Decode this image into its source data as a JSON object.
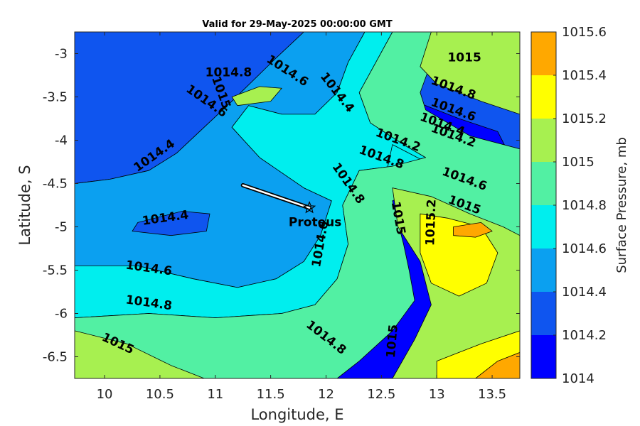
{
  "chart_data": {
    "type": "heatmap",
    "title": "Valid for 29-May-2025 00:00:00 GMT",
    "xlabel": "Longitude, E",
    "ylabel": "Latitude, S",
    "xlim": [
      9.73,
      13.75
    ],
    "ylim": [
      -6.75,
      -2.75
    ],
    "x_ticks": [
      10,
      10.5,
      11,
      11.5,
      12,
      12.5,
      13,
      13.5
    ],
    "x_tick_labels": [
      "10",
      "10.5",
      "11",
      "11.5",
      "12",
      "12.5",
      "13",
      "13.5"
    ],
    "y_ticks": [
      -3,
      -3.5,
      -4,
      -4.5,
      -5,
      -5.5,
      -6,
      -6.5
    ],
    "y_tick_labels": [
      "-3",
      "-3.5",
      "-4",
      "-4.5",
      "-5",
      "-5.5",
      "-6",
      "-6.5"
    ],
    "colorbar": {
      "label": "Surface Pressure, mb",
      "levels": [
        1014,
        1014.2,
        1014.4,
        1014.6,
        1014.8,
        1015,
        1015.2,
        1015.4,
        1015.6
      ],
      "level_labels": [
        "1014",
        "1014.2",
        "1014.4",
        "1014.6",
        "1014.8",
        "1015",
        "1015.2",
        "1015.4",
        "1015.6"
      ],
      "colors": [
        "#0000ff",
        "#0f55ef",
        "#0ba0f0",
        "#00eeee",
        "#52f0a3",
        "#a7f050",
        "#ffff00",
        "#ffa800",
        "#ff5a00"
      ]
    },
    "fields": [
      {
        "name": "b0",
        "color": "#0000ff",
        "points": [
          [
            9.73,
            -2.75
          ],
          [
            13.75,
            -2.75
          ],
          [
            13.75,
            -6.75
          ],
          [
            9.73,
            -6.75
          ]
        ]
      },
      {
        "name": "b1",
        "color": "#0f55ef",
        "points": [
          [
            9.73,
            -2.75
          ],
          [
            11.8,
            -2.75
          ],
          [
            11.55,
            -3.05
          ],
          [
            11.35,
            -3.3
          ],
          [
            11.15,
            -3.55
          ],
          [
            10.9,
            -3.85
          ],
          [
            10.65,
            -4.15
          ],
          [
            10.4,
            -4.35
          ],
          [
            10.05,
            -4.45
          ],
          [
            9.73,
            -4.5
          ]
        ]
      },
      {
        "name": "b1b",
        "color": "#0f55ef",
        "points": [
          [
            12.2,
            -3.0
          ],
          [
            12.6,
            -3.0
          ],
          [
            13.1,
            -3.2
          ],
          [
            13.5,
            -3.4
          ],
          [
            13.75,
            -3.55
          ],
          [
            13.75,
            -4.5
          ],
          [
            13.4,
            -4.45
          ],
          [
            13.1,
            -4.3
          ],
          [
            12.8,
            -4.1
          ],
          [
            12.55,
            -3.9
          ],
          [
            12.35,
            -3.65
          ],
          [
            12.2,
            -3.35
          ]
        ]
      },
      {
        "name": "b0a",
        "color": "#0000ff",
        "points": [
          [
            12.4,
            -3.35
          ],
          [
            12.8,
            -3.55
          ],
          [
            13.2,
            -3.75
          ],
          [
            13.55,
            -3.9
          ],
          [
            13.65,
            -4.15
          ],
          [
            13.4,
            -4.35
          ],
          [
            13.1,
            -4.25
          ],
          [
            12.8,
            -4.0
          ],
          [
            12.55,
            -3.75
          ],
          [
            12.4,
            -3.55
          ]
        ]
      },
      {
        "name": "b2",
        "color": "#0ba0f0",
        "points": [
          [
            9.73,
            -4.5
          ],
          [
            10.05,
            -4.45
          ],
          [
            10.4,
            -4.35
          ],
          [
            10.65,
            -4.15
          ],
          [
            10.9,
            -3.85
          ],
          [
            11.15,
            -3.55
          ],
          [
            11.35,
            -3.3
          ],
          [
            11.55,
            -3.05
          ],
          [
            11.8,
            -2.75
          ],
          [
            12.35,
            -2.75
          ],
          [
            12.2,
            -3.1
          ],
          [
            12.1,
            -3.45
          ],
          [
            11.9,
            -3.7
          ],
          [
            11.6,
            -3.7
          ],
          [
            11.3,
            -3.6
          ],
          [
            11.15,
            -3.85
          ],
          [
            11.4,
            -4.2
          ],
          [
            11.8,
            -4.55
          ],
          [
            12.05,
            -4.7
          ],
          [
            11.95,
            -5.1
          ],
          [
            11.8,
            -5.4
          ],
          [
            11.55,
            -5.6
          ],
          [
            11.2,
            -5.7
          ],
          [
            10.8,
            -5.6
          ],
          [
            10.3,
            -5.45
          ],
          [
            9.73,
            -5.45
          ]
        ]
      },
      {
        "name": "b1c",
        "color": "#0f55ef",
        "points": [
          [
            10.3,
            -4.95
          ],
          [
            10.7,
            -4.82
          ],
          [
            10.95,
            -4.85
          ],
          [
            10.92,
            -5.05
          ],
          [
            10.6,
            -5.1
          ],
          [
            10.25,
            -5.05
          ]
        ]
      },
      {
        "name": "b3a",
        "color": "#00eeee",
        "points": [
          [
            9.73,
            -5.45
          ],
          [
            10.3,
            -5.45
          ],
          [
            10.8,
            -5.6
          ],
          [
            11.2,
            -5.7
          ],
          [
            11.55,
            -5.6
          ],
          [
            11.8,
            -5.4
          ],
          [
            11.95,
            -5.1
          ],
          [
            12.05,
            -4.7
          ],
          [
            11.8,
            -4.55
          ],
          [
            11.4,
            -4.2
          ],
          [
            11.15,
            -3.85
          ],
          [
            11.3,
            -3.6
          ],
          [
            11.6,
            -3.7
          ],
          [
            11.9,
            -3.7
          ],
          [
            12.1,
            -3.45
          ],
          [
            12.2,
            -3.1
          ],
          [
            12.35,
            -2.75
          ],
          [
            12.6,
            -2.75
          ],
          [
            12.45,
            -3.1
          ],
          [
            12.3,
            -3.45
          ],
          [
            12.4,
            -3.8
          ],
          [
            12.7,
            -4.05
          ],
          [
            12.9,
            -4.2
          ],
          [
            12.6,
            -4.3
          ],
          [
            12.3,
            -4.35
          ],
          [
            12.15,
            -4.75
          ],
          [
            12.2,
            -5.2
          ],
          [
            12.1,
            -5.6
          ],
          [
            11.9,
            -5.9
          ],
          [
            11.6,
            -6.0
          ],
          [
            11.0,
            -6.05
          ],
          [
            10.4,
            -6.0
          ],
          [
            9.73,
            -6.05
          ]
        ]
      },
      {
        "name": "b3b",
        "color": "#00eeee",
        "points": [
          [
            12.6,
            -4.05
          ],
          [
            12.9,
            -4.25
          ],
          [
            13.2,
            -4.4
          ],
          [
            13.5,
            -4.55
          ],
          [
            13.75,
            -4.75
          ],
          [
            13.75,
            -5.0
          ],
          [
            13.4,
            -4.9
          ],
          [
            13.05,
            -4.7
          ],
          [
            12.8,
            -4.5
          ],
          [
            12.55,
            -4.35
          ]
        ]
      },
      {
        "name": "b4",
        "color": "#52f0a3",
        "points": [
          [
            9.73,
            -6.05
          ],
          [
            10.4,
            -6.0
          ],
          [
            11.0,
            -6.05
          ],
          [
            11.6,
            -6.0
          ],
          [
            11.9,
            -5.9
          ],
          [
            12.1,
            -5.6
          ],
          [
            12.2,
            -5.2
          ],
          [
            12.15,
            -4.75
          ],
          [
            12.3,
            -4.35
          ],
          [
            12.6,
            -4.3
          ],
          [
            12.9,
            -4.2
          ],
          [
            12.7,
            -4.05
          ],
          [
            12.4,
            -3.8
          ],
          [
            12.3,
            -3.45
          ],
          [
            12.45,
            -3.1
          ],
          [
            12.6,
            -2.75
          ],
          [
            12.95,
            -2.75
          ],
          [
            12.95,
            -3.1
          ],
          [
            12.85,
            -3.45
          ],
          [
            12.9,
            -3.65
          ],
          [
            13.3,
            -3.95
          ],
          [
            13.75,
            -4.1
          ],
          [
            13.75,
            -5.1
          ],
          [
            13.45,
            -4.95
          ],
          [
            13.1,
            -4.8
          ],
          [
            12.75,
            -4.6
          ],
          [
            12.6,
            -4.7
          ],
          [
            12.7,
            -5.2
          ],
          [
            12.75,
            -5.5
          ],
          [
            12.8,
            -5.85
          ],
          [
            12.6,
            -6.2
          ],
          [
            12.3,
            -6.55
          ],
          [
            12.1,
            -6.75
          ],
          [
            9.73,
            -6.75
          ]
        ]
      },
      {
        "name": "b5a",
        "color": "#a7f050",
        "points": [
          [
            12.95,
            -2.75
          ],
          [
            13.75,
            -2.75
          ],
          [
            13.75,
            -3.7
          ],
          [
            13.4,
            -3.55
          ],
          [
            13.0,
            -3.35
          ],
          [
            12.85,
            -3.15
          ]
        ]
      },
      {
        "name": "b5b",
        "color": "#a7f050",
        "points": [
          [
            12.6,
            -4.55
          ],
          [
            12.95,
            -4.65
          ],
          [
            13.3,
            -4.85
          ],
          [
            13.6,
            -5.0
          ],
          [
            13.75,
            -5.1
          ],
          [
            13.75,
            -6.75
          ],
          [
            12.6,
            -6.75
          ],
          [
            12.8,
            -6.3
          ],
          [
            12.95,
            -5.9
          ],
          [
            12.85,
            -5.4
          ],
          [
            12.65,
            -5.0
          ]
        ]
      },
      {
        "name": "b5c",
        "color": "#a7f050",
        "points": [
          [
            9.73,
            -6.2
          ],
          [
            10.2,
            -6.35
          ],
          [
            10.6,
            -6.6
          ],
          [
            10.9,
            -6.75
          ],
          [
            9.73,
            -6.75
          ]
        ]
      },
      {
        "name": "b5d",
        "color": "#a7f050",
        "points": [
          [
            11.15,
            -3.5
          ],
          [
            11.4,
            -3.38
          ],
          [
            11.6,
            -3.4
          ],
          [
            11.5,
            -3.55
          ],
          [
            11.2,
            -3.6
          ]
        ]
      },
      {
        "name": "b6",
        "color": "#ffff00",
        "points": [
          [
            12.85,
            -4.85
          ],
          [
            13.1,
            -4.9
          ],
          [
            13.4,
            -5.0
          ],
          [
            13.55,
            -5.3
          ],
          [
            13.45,
            -5.65
          ],
          [
            13.2,
            -5.8
          ],
          [
            12.95,
            -5.65
          ],
          [
            12.85,
            -5.3
          ]
        ]
      },
      {
        "name": "b6b",
        "color": "#ffff00",
        "points": [
          [
            13.0,
            -6.55
          ],
          [
            13.4,
            -6.35
          ],
          [
            13.75,
            -6.2
          ],
          [
            13.75,
            -6.75
          ],
          [
            13.0,
            -6.75
          ]
        ]
      },
      {
        "name": "b7",
        "color": "#ffa800",
        "points": [
          [
            13.15,
            -5.0
          ],
          [
            13.4,
            -4.95
          ],
          [
            13.5,
            -5.05
          ],
          [
            13.35,
            -5.12
          ],
          [
            13.15,
            -5.1
          ]
        ]
      },
      {
        "name": "b7b",
        "color": "#ffa800",
        "points": [
          [
            13.35,
            -6.75
          ],
          [
            13.55,
            -6.55
          ],
          [
            13.75,
            -6.45
          ],
          [
            13.75,
            -6.75
          ]
        ]
      }
    ],
    "contour_labels": [
      {
        "text": "1014.8",
        "x": 11.12,
        "y": -3.22,
        "angle": 0
      },
      {
        "text": "1015",
        "x": 11.05,
        "y": -3.45,
        "angle": 70
      },
      {
        "text": "1014.6",
        "x": 10.92,
        "y": -3.55,
        "angle": 35
      },
      {
        "text": "1014.6",
        "x": 11.65,
        "y": -3.2,
        "angle": 33
      },
      {
        "text": "1014.4",
        "x": 12.1,
        "y": -3.45,
        "angle": 52
      },
      {
        "text": "1015",
        "x": 13.25,
        "y": -3.05,
        "angle": 0
      },
      {
        "text": "1014.8",
        "x": 13.15,
        "y": -3.4,
        "angle": 20
      },
      {
        "text": "1014.6",
        "x": 13.15,
        "y": -3.65,
        "angle": 20
      },
      {
        "text": "1014.4",
        "x": 13.05,
        "y": -3.82,
        "angle": 20
      },
      {
        "text": "1014.2",
        "x": 13.15,
        "y": -3.95,
        "angle": 20
      },
      {
        "text": "1014.2",
        "x": 12.65,
        "y": -4.0,
        "angle": 20
      },
      {
        "text": "1014.8",
        "x": 12.5,
        "y": -4.2,
        "angle": 20
      },
      {
        "text": "1014.6",
        "x": 13.25,
        "y": -4.45,
        "angle": 20
      },
      {
        "text": "1015",
        "x": 13.25,
        "y": -4.75,
        "angle": 20
      },
      {
        "text": "1014.4",
        "x": 10.45,
        "y": -4.18,
        "angle": -35
      },
      {
        "text": "1014.8",
        "x": 12.2,
        "y": -4.5,
        "angle": 55
      },
      {
        "text": "1014.4",
        "x": 10.55,
        "y": -4.9,
        "angle": -8
      },
      {
        "text": "1015",
        "x": 12.65,
        "y": -4.9,
        "angle": 80
      },
      {
        "text": "1015.2",
        "x": 12.95,
        "y": -4.95,
        "angle": -88
      },
      {
        "text": "1014.6",
        "x": 11.95,
        "y": -5.2,
        "angle": -80
      },
      {
        "text": "1014.6",
        "x": 10.4,
        "y": -5.48,
        "angle": 8
      },
      {
        "text": "1014.8",
        "x": 10.4,
        "y": -5.88,
        "angle": 8
      },
      {
        "text": "1015",
        "x": 10.12,
        "y": -6.35,
        "angle": 25
      },
      {
        "text": "1014.8",
        "x": 12.0,
        "y": -6.28,
        "angle": 38
      },
      {
        "text": "1015",
        "x": 12.6,
        "y": -6.32,
        "angle": -85
      }
    ],
    "track": {
      "from": [
        11.25,
        -4.52
      ],
      "to": [
        11.85,
        -4.78
      ]
    },
    "marker": {
      "label": "Proteus",
      "x": 11.85,
      "y": -4.78
    }
  }
}
